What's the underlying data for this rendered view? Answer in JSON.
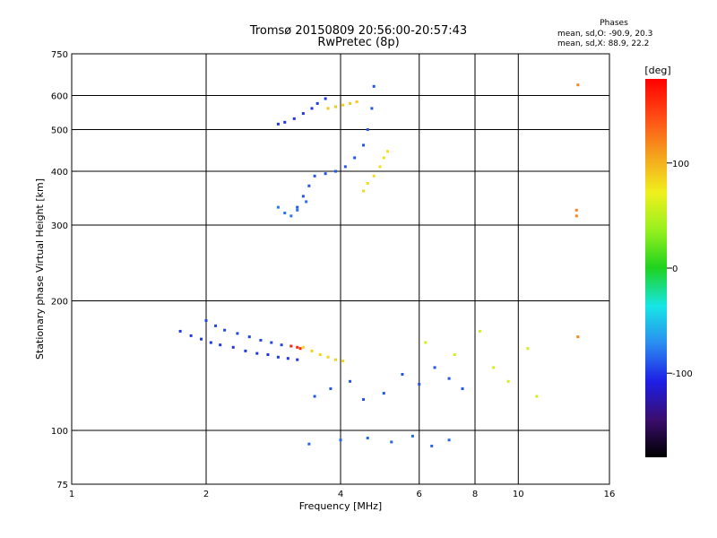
{
  "title": {
    "line1": "Tromsø 20150809 20:56:00-20:57:43",
    "line2": "RwPretec (8p)"
  },
  "phases_box": {
    "heading": "Phases",
    "o_mode": "mean, sd,O: -90.9, 20.3",
    "x_mode": "mean, sd,X:  88.9, 22.2"
  },
  "chart_data": {
    "type": "scatter",
    "xlabel": "Frequency [MHz]",
    "ylabel": "Stationary phase Virtual Height [km]",
    "x_scale": "log2",
    "y_scale": "log",
    "xlim": [
      1,
      16
    ],
    "ylim": [
      75,
      750
    ],
    "x_ticks": [
      {
        "value": 1,
        "label": "1"
      },
      {
        "value": 2,
        "label": "2"
      },
      {
        "value": 4,
        "label": "4"
      },
      {
        "value": 6,
        "label": "6"
      },
      {
        "value": 8,
        "label": "8"
      },
      {
        "value": 10,
        "label": "10"
      },
      {
        "value": 16,
        "label": "16"
      }
    ],
    "y_ticks": [
      {
        "value": 75,
        "label": "75"
      },
      {
        "value": 100,
        "label": "100"
      },
      {
        "value": 200,
        "label": "200"
      },
      {
        "value": 300,
        "label": "300"
      },
      {
        "value": 400,
        "label": "400"
      },
      {
        "value": 500,
        "label": "500"
      },
      {
        "value": 600,
        "label": "600"
      },
      {
        "value": 750,
        "label": "750"
      }
    ],
    "grid": true,
    "colorbar": {
      "label": "[deg]",
      "range": [
        -180,
        180
      ],
      "ticks": [
        {
          "value": 100,
          "label": "100"
        },
        {
          "value": 0,
          "label": "0"
        },
        {
          "value": -100,
          "label": "-100"
        }
      ],
      "colors": [
        "#000000",
        "#3a0d6e",
        "#1e1ee6",
        "#2a8cf0",
        "#17e6e6",
        "#1ed21e",
        "#96f01e",
        "#f0f01e",
        "#f5a01e",
        "#ff4b14",
        "#ff0000"
      ]
    },
    "series": [
      {
        "trace": "lower-F-O",
        "phase": -100,
        "points": [
          [
            1.75,
            170
          ],
          [
            1.85,
            166
          ],
          [
            1.95,
            163
          ],
          [
            2.05,
            160
          ],
          [
            2.15,
            158
          ],
          [
            2.3,
            156
          ],
          [
            2.45,
            153
          ],
          [
            2.6,
            151
          ],
          [
            2.75,
            150
          ],
          [
            2.9,
            148
          ],
          [
            3.05,
            147
          ],
          [
            3.2,
            146
          ]
        ]
      },
      {
        "trace": "lower-F-O-2",
        "phase": -95,
        "points": [
          [
            2.0,
            180
          ],
          [
            2.1,
            175
          ],
          [
            2.2,
            171
          ],
          [
            2.35,
            168
          ],
          [
            2.5,
            165
          ],
          [
            2.65,
            162
          ],
          [
            2.8,
            160
          ],
          [
            2.95,
            158
          ],
          [
            3.1,
            157
          ]
        ]
      },
      {
        "trace": "lower-F-X",
        "phase": 85,
        "points": [
          [
            3.3,
            156
          ],
          [
            3.45,
            153
          ],
          [
            3.6,
            150
          ],
          [
            3.75,
            148
          ],
          [
            3.9,
            146
          ],
          [
            4.05,
            145
          ]
        ]
      },
      {
        "trace": "lower-F-mixed",
        "phase": 160,
        "points": [
          [
            3.1,
            157
          ],
          [
            3.2,
            156
          ],
          [
            3.25,
            155
          ]
        ]
      },
      {
        "trace": "upper-band-O",
        "phase": -100,
        "points": [
          [
            2.9,
            515
          ],
          [
            3.0,
            520
          ],
          [
            3.15,
            530
          ],
          [
            3.3,
            545
          ],
          [
            3.45,
            560
          ],
          [
            3.55,
            575
          ],
          [
            3.7,
            590
          ]
        ]
      },
      {
        "trace": "upper-band-X",
        "phase": 90,
        "points": [
          [
            3.75,
            560
          ],
          [
            3.9,
            565
          ],
          [
            4.05,
            570
          ],
          [
            4.2,
            575
          ],
          [
            4.35,
            580
          ]
        ]
      },
      {
        "trace": "upper-F-O",
        "phase": -90,
        "points": [
          [
            3.2,
            330
          ],
          [
            3.3,
            350
          ],
          [
            3.4,
            370
          ],
          [
            3.5,
            390
          ],
          [
            3.7,
            395
          ],
          [
            3.9,
            400
          ],
          [
            4.1,
            410
          ],
          [
            4.3,
            430
          ],
          [
            4.5,
            460
          ],
          [
            4.6,
            500
          ],
          [
            4.7,
            560
          ],
          [
            4.75,
            630
          ]
        ]
      },
      {
        "trace": "upper-F-X",
        "phase": 80,
        "points": [
          [
            4.5,
            360
          ],
          [
            4.6,
            375
          ],
          [
            4.75,
            390
          ],
          [
            4.9,
            410
          ],
          [
            5.0,
            430
          ],
          [
            5.1,
            445
          ]
        ]
      },
      {
        "trace": "upper-F-cusp",
        "phase": -80,
        "points": [
          [
            2.9,
            330
          ],
          [
            3.0,
            320
          ],
          [
            3.1,
            315
          ],
          [
            3.2,
            325
          ],
          [
            3.35,
            340
          ]
        ]
      },
      {
        "trace": "clutter-mid",
        "phase": -90,
        "points": [
          [
            3.5,
            120
          ],
          [
            3.8,
            125
          ],
          [
            4.2,
            130
          ],
          [
            4.5,
            118
          ],
          [
            5.0,
            122
          ],
          [
            5.5,
            135
          ],
          [
            6.0,
            128
          ],
          [
            6.5,
            140
          ],
          [
            7.0,
            132
          ],
          [
            7.5,
            125
          ]
        ]
      },
      {
        "trace": "clutter-high-freq",
        "phase": 60,
        "points": [
          [
            6.2,
            160
          ],
          [
            7.2,
            150
          ],
          [
            8.2,
            170
          ],
          [
            8.8,
            140
          ],
          [
            9.5,
            130
          ],
          [
            10.5,
            155
          ],
          [
            11.0,
            120
          ]
        ]
      },
      {
        "trace": "low-echoes",
        "phase": -85,
        "points": [
          [
            3.4,
            93
          ],
          [
            4.0,
            95
          ],
          [
            4.6,
            96
          ],
          [
            5.2,
            94
          ],
          [
            5.8,
            97
          ],
          [
            6.4,
            92
          ],
          [
            7.0,
            95
          ]
        ]
      },
      {
        "trace": "isolated",
        "phase": 120,
        "points": [
          [
            13.5,
            315
          ],
          [
            13.5,
            325
          ],
          [
            13.6,
            165
          ],
          [
            13.6,
            635
          ]
        ]
      }
    ]
  }
}
